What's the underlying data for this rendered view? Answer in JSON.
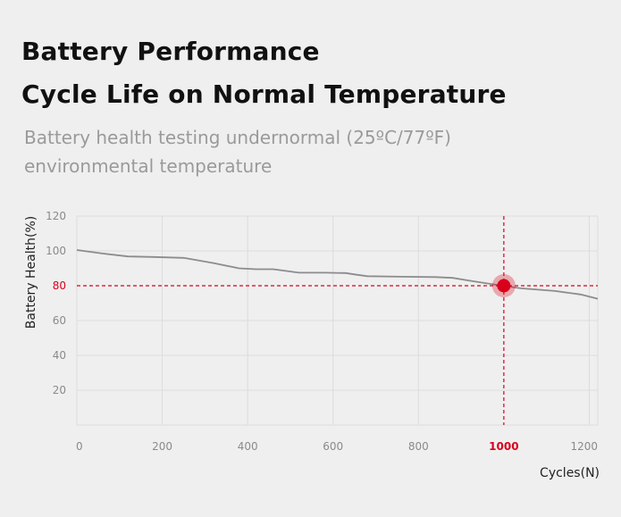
{
  "title_line1": "Battery Performance",
  "title_line2": "Cycle Life on Normal Temperature",
  "subtitle": "Battery health testing undernormal (25ºC/77ºF) environmental temperature",
  "chart_data": {
    "type": "line",
    "xlabel": "Cycles(N)",
    "ylabel": "Battery Health(%)",
    "xlim": [
      0,
      1220
    ],
    "ylim": [
      0,
      120
    ],
    "x_ticks": [
      0,
      200,
      400,
      600,
      800,
      1000,
      1200
    ],
    "y_ticks": [
      20,
      40,
      60,
      80,
      100,
      120
    ],
    "grid": true,
    "series": [
      {
        "color": "#8c8c8c",
        "x": [
          0,
          60,
          120,
          180,
          250,
          320,
          380,
          420,
          460,
          520,
          580,
          630,
          650,
          680,
          760,
          840,
          880,
          930,
          997,
          1040,
          1120,
          1180,
          1220
        ],
        "y": [
          100.5,
          98.5,
          96.8,
          96.5,
          96,
          93,
          90,
          89.5,
          89.5,
          87.5,
          87.5,
          87.3,
          86.5,
          85.5,
          85.2,
          85,
          84.5,
          82.5,
          80,
          78.5,
          77,
          75,
          72.5
        ]
      }
    ],
    "highlight": {
      "x": 1000,
      "y": 80,
      "color": "#d9001b"
    }
  }
}
